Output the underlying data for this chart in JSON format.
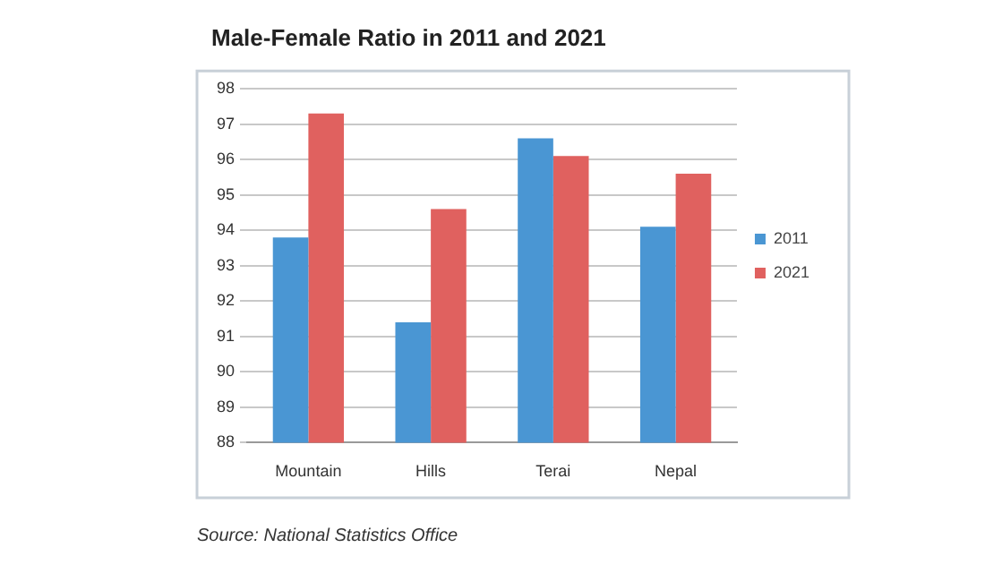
{
  "chart_data": {
    "type": "bar",
    "title": "Male-Female Ratio in 2011 and 2021",
    "categories": [
      "Mountain",
      "Hills",
      "Terai",
      "Nepal"
    ],
    "series": [
      {
        "name": "2011",
        "color": "#4a96d3",
        "values": [
          93.8,
          91.4,
          96.6,
          94.1
        ]
      },
      {
        "name": "2021",
        "color": "#e0615f",
        "values": [
          97.3,
          94.6,
          96.1,
          95.6
        ]
      }
    ],
    "ylim": [
      88,
      98
    ],
    "yticks": [
      88,
      89,
      90,
      91,
      92,
      93,
      94,
      95,
      96,
      97,
      98
    ],
    "grid": "y",
    "legend": "right",
    "annotations": [
      "Source: National Statistics Office"
    ]
  }
}
